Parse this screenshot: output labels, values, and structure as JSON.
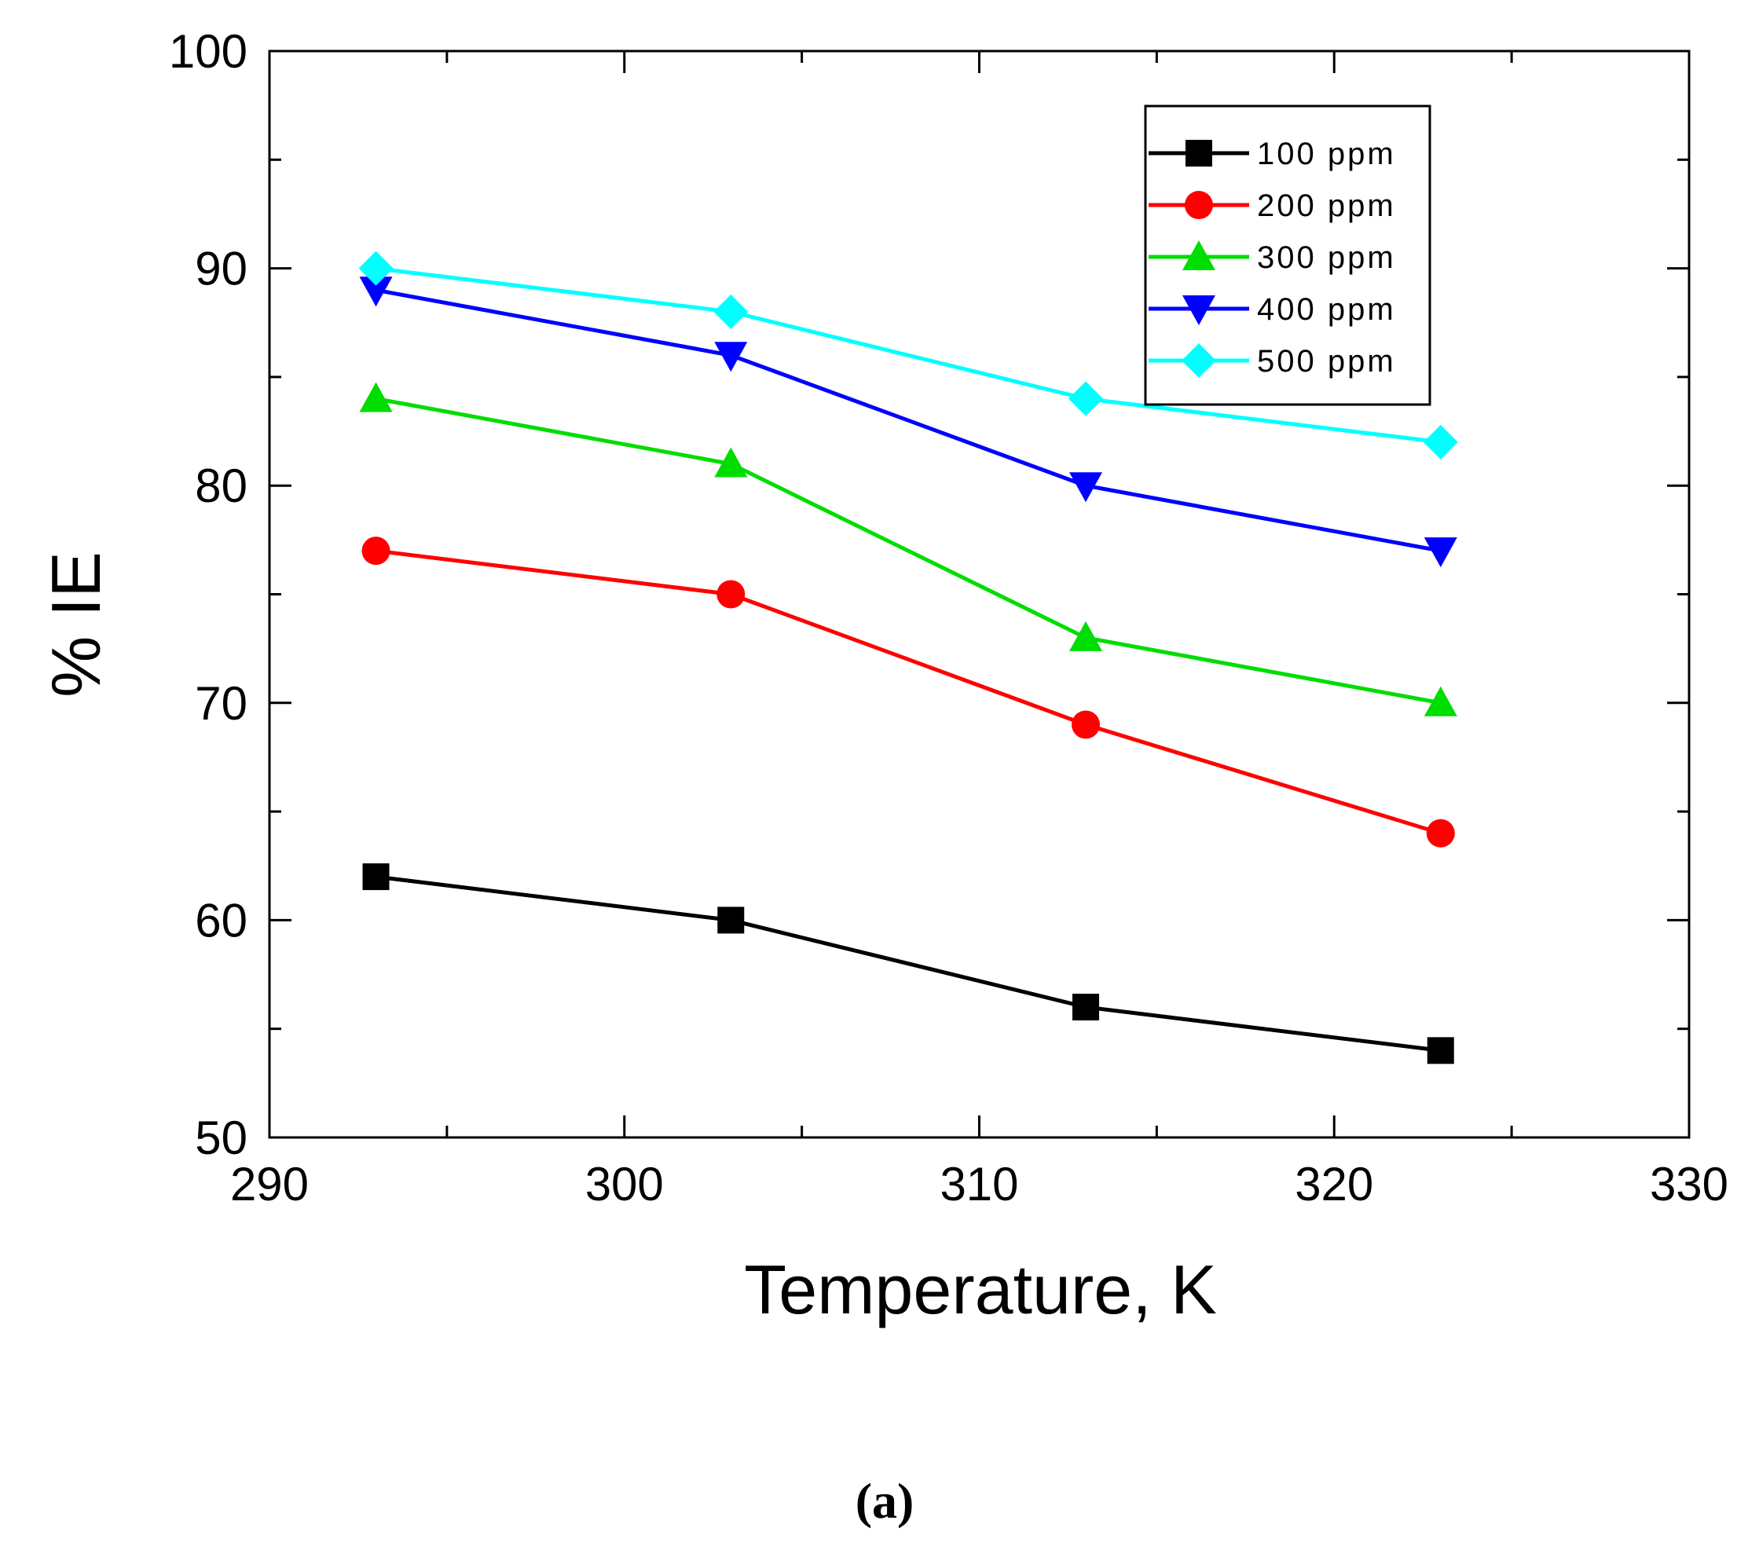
{
  "chart_data": {
    "type": "line",
    "xlabel": "Temperature, K",
    "ylabel": "% IE",
    "xlim": [
      290,
      330
    ],
    "ylim": [
      50,
      100
    ],
    "x_ticks": [
      290,
      300,
      310,
      320,
      330
    ],
    "y_ticks": [
      50,
      60,
      70,
      80,
      90,
      100
    ],
    "x_minor_step": 5,
    "y_minor_step": 5,
    "grid": false,
    "legend_position": "top-right",
    "x": [
      293,
      303,
      313,
      323
    ],
    "series": [
      {
        "name": "100 ppm",
        "color": "#000000",
        "marker": "square",
        "values": [
          62,
          60,
          56,
          54
        ]
      },
      {
        "name": "200 ppm",
        "color": "#ff0000",
        "marker": "circle",
        "values": [
          77,
          75,
          69,
          64
        ]
      },
      {
        "name": "300 ppm",
        "color": "#00dd00",
        "marker": "triangle-up",
        "values": [
          84,
          81,
          73,
          70
        ]
      },
      {
        "name": "400 ppm",
        "color": "#0000ff",
        "marker": "triangle-down",
        "values": [
          89,
          86,
          80,
          77
        ]
      },
      {
        "name": "500 ppm",
        "color": "#00ffff",
        "marker": "diamond",
        "values": [
          90,
          88,
          84,
          82
        ]
      }
    ],
    "panel_label": "(a)"
  }
}
